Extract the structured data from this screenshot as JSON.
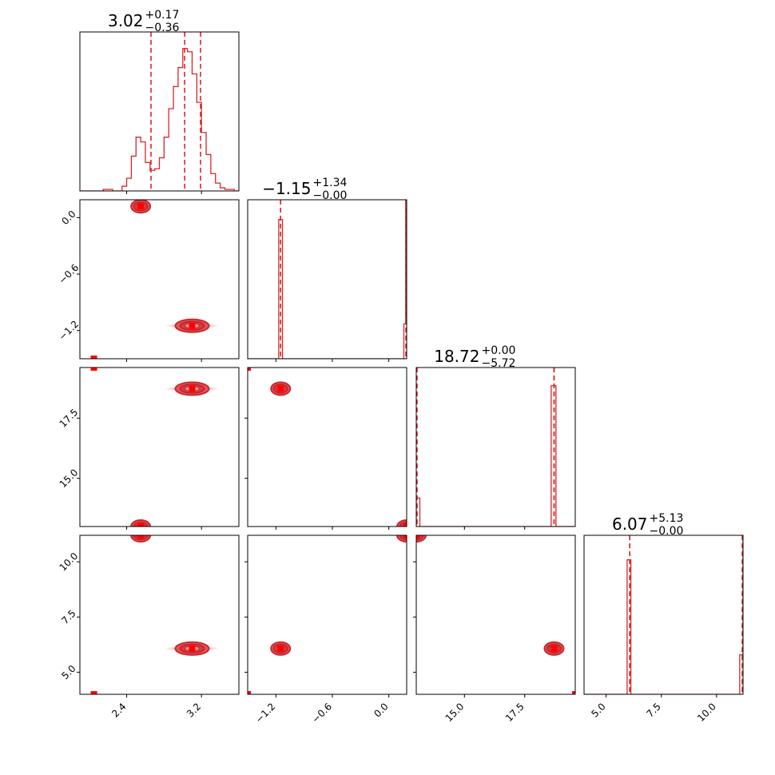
{
  "chart_data": {
    "type": "corner",
    "color": "#d62728",
    "parameters": [
      {
        "median_label": "3.02",
        "upper_label": "+0.17",
        "lower_label": "−0.36",
        "quantiles": [
          2.66,
          3.02,
          3.19
        ],
        "range": [
          1.9,
          3.6
        ],
        "ticks": [
          2.4,
          3.2
        ],
        "tick_labels": [
          "2.4",
          "3.2"
        ],
        "hist_x": [
          1.9,
          1.95,
          2.0,
          2.05,
          2.1,
          2.15,
          2.2,
          2.25,
          2.3,
          2.35,
          2.4,
          2.45,
          2.5,
          2.55,
          2.6,
          2.65,
          2.7,
          2.75,
          2.8,
          2.85,
          2.9,
          2.95,
          3.0,
          3.05,
          3.1,
          3.15,
          3.2,
          3.25,
          3.3,
          3.35,
          3.4,
          3.45,
          3.5,
          3.55
        ],
        "hist_y": [
          0,
          0,
          0,
          0,
          0,
          0.01,
          0.01,
          0,
          0,
          0.03,
          0.08,
          0.22,
          0.34,
          0.31,
          0.18,
          0.13,
          0.14,
          0.21,
          0.34,
          0.52,
          0.66,
          0.78,
          0.9,
          0.88,
          0.74,
          0.56,
          0.37,
          0.23,
          0.11,
          0.05,
          0.02,
          0.01,
          0.01,
          0
        ]
      },
      {
        "median_label": "−1.15",
        "upper_label": "+1.34",
        "lower_label": "−0.00",
        "quantiles": [
          -1.15,
          -1.15,
          0.19
        ],
        "range": [
          -1.5,
          0.19
        ],
        "ticks": [
          -1.2,
          -0.6,
          0.0
        ],
        "tick_labels": [
          "−1.2",
          "−0.6",
          "0.0"
        ],
        "hist_x": [
          -1.5,
          -1.17,
          -1.13,
          0.16,
          0.18
        ],
        "hist_y": [
          0,
          0.88,
          0,
          0.22,
          1.0
        ]
      },
      {
        "median_label": "18.72",
        "upper_label": "+0.00",
        "lower_label": "−5.72",
        "quantiles": [
          13.0,
          18.72,
          18.72
        ],
        "range": [
          13.0,
          19.6
        ],
        "ticks": [
          15.0,
          17.5
        ],
        "tick_labels": [
          "15.0",
          "17.5"
        ],
        "hist_x": [
          13.0,
          13.15,
          18.6,
          18.8
        ],
        "hist_y": [
          0.18,
          0,
          0.89,
          0
        ]
      },
      {
        "median_label": "6.07",
        "upper_label": "+5.13",
        "lower_label": "−0.00",
        "quantiles": [
          6.07,
          6.07,
          11.2
        ],
        "range": [
          4.0,
          11.2
        ],
        "ticks": [
          5.0,
          7.5,
          10.0
        ],
        "tick_labels": [
          "5.0",
          "7.5",
          "10.0"
        ],
        "hist_x": [
          4.0,
          5.95,
          6.12,
          11.05,
          11.2
        ],
        "hist_y": [
          0,
          0.85,
          0,
          0.25,
          1.0
        ]
      }
    ],
    "pairs": [
      {
        "row": 1,
        "col": 0,
        "clusters": [
          {
            "x": 2.55,
            "y": 0.12,
            "wx": 0.14,
            "wy": 0.04,
            "streak": false
          },
          {
            "x": 3.1,
            "y": -1.15,
            "wx": 0.36,
            "wy": 0.05,
            "streak": true
          }
        ],
        "points": [
          {
            "x": 2.05,
            "y": -1.5
          }
        ]
      },
      {
        "row": 2,
        "col": 0,
        "clusters": [
          {
            "x": 2.55,
            "y": 13.0,
            "wx": 0.14,
            "wy": 0.22,
            "streak": false
          },
          {
            "x": 3.1,
            "y": 18.72,
            "wx": 0.36,
            "wy": 0.2,
            "streak": true
          }
        ],
        "points": [
          {
            "x": 2.05,
            "y": 19.6
          }
        ]
      },
      {
        "row": 2,
        "col": 1,
        "clusters": [
          {
            "x": -1.15,
            "y": 18.72,
            "wx": 0.04,
            "wy": 0.22,
            "streak": false
          },
          {
            "x": 0.19,
            "y": 13.0,
            "wx": 0.04,
            "wy": 0.2,
            "streak": false
          }
        ],
        "points": [
          {
            "x": -1.5,
            "y": 19.6
          }
        ]
      },
      {
        "row": 3,
        "col": 0,
        "clusters": [
          {
            "x": 2.55,
            "y": 11.2,
            "wx": 0.14,
            "wy": 0.25,
            "streak": false
          },
          {
            "x": 3.1,
            "y": 6.07,
            "wx": 0.36,
            "wy": 0.22,
            "streak": true
          }
        ],
        "points": [
          {
            "x": 2.05,
            "y": 4.0
          }
        ]
      },
      {
        "row": 3,
        "col": 1,
        "clusters": [
          {
            "x": -1.15,
            "y": 6.07,
            "wx": 0.04,
            "wy": 0.25,
            "streak": false
          },
          {
            "x": 0.19,
            "y": 11.2,
            "wx": 0.04,
            "wy": 0.25,
            "streak": false
          }
        ],
        "points": [
          {
            "x": -1.5,
            "y": 4.0
          }
        ]
      },
      {
        "row": 3,
        "col": 2,
        "clusters": [
          {
            "x": 18.72,
            "y": 6.07,
            "wx": 0.22,
            "wy": 0.25,
            "streak": false
          },
          {
            "x": 13.0,
            "y": 11.2,
            "wx": 0.22,
            "wy": 0.25,
            "streak": false
          }
        ],
        "points": [
          {
            "x": 19.6,
            "y": 4.0
          }
        ]
      }
    ]
  }
}
